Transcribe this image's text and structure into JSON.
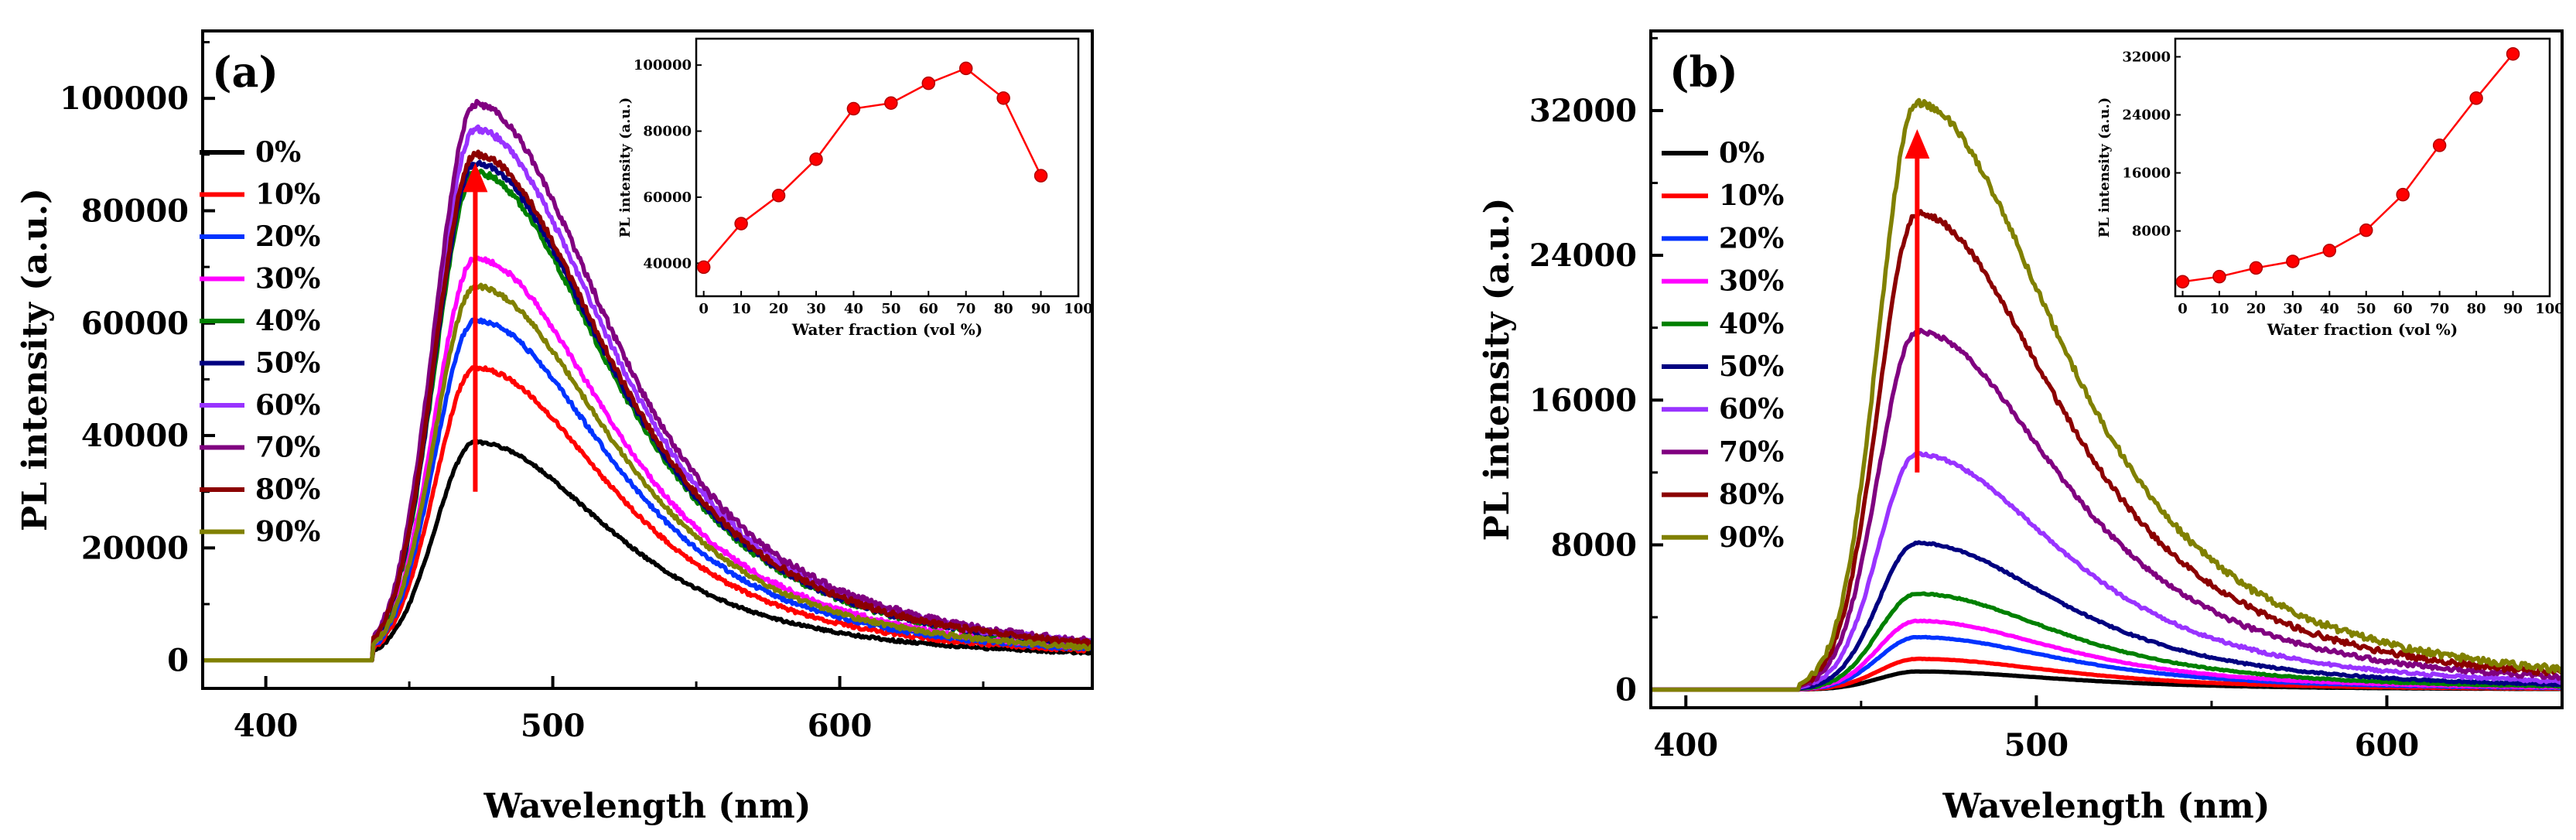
{
  "figure": {
    "panels": [
      "(a)",
      "(b)"
    ]
  },
  "chart_data": [
    {
      "type": "line",
      "panel": "(a)",
      "xlabel": "Wavelength (nm)",
      "ylabel": "PL intensity (a.u.)",
      "xlim": [
        378,
        688
      ],
      "ylim": [
        -5000,
        112000
      ],
      "xticks": [
        400,
        500,
        600
      ],
      "yticks": [
        0,
        20000,
        40000,
        60000,
        80000,
        100000
      ],
      "peak_center": 473,
      "rise_width": 14,
      "tail_width": 52,
      "onset": 437,
      "series": [
        {
          "name": "0%",
          "color": "#000000",
          "peak": 38800
        },
        {
          "name": "10%",
          "color": "#ff0000",
          "peak": 52000
        },
        {
          "name": "20%",
          "color": "#0033ff",
          "peak": 60500
        },
        {
          "name": "30%",
          "color": "#ff00ff",
          "peak": 71500
        },
        {
          "name": "40%",
          "color": "#008000",
          "peak": 86800
        },
        {
          "name": "50%",
          "color": "#000080",
          "peak": 88500
        },
        {
          "name": "60%",
          "color": "#9933ff",
          "peak": 94500
        },
        {
          "name": "70%",
          "color": "#800080",
          "peak": 99000
        },
        {
          "name": "80%",
          "color": "#8b0000",
          "peak": 90000
        },
        {
          "name": "90%",
          "color": "#808000",
          "peak": 66500
        }
      ],
      "arrow": {
        "x": 473,
        "from": 30000,
        "to": 88000,
        "color": "#ff0000"
      },
      "inset": {
        "xlabel": "Water fraction (vol %)",
        "ylabel": "PL intensity (a.u.)",
        "xlim": [
          -2,
          100
        ],
        "ylim": [
          30000,
          108000
        ],
        "xticks": [
          0,
          10,
          20,
          30,
          40,
          50,
          60,
          70,
          80,
          90,
          100
        ],
        "yticks": [
          40000,
          60000,
          80000,
          100000
        ],
        "x": [
          0,
          10,
          20,
          30,
          40,
          50,
          60,
          70,
          80,
          90
        ],
        "y": [
          38800,
          52000,
          60500,
          71500,
          86800,
          88500,
          94500,
          99000,
          90000,
          66500
        ]
      }
    },
    {
      "type": "line",
      "panel": "(b)",
      "xlabel": "Wavelength (nm)",
      "ylabel": "PL intensity (a.u.)",
      "xlim": [
        390,
        650
      ],
      "ylim": [
        -1000,
        36400
      ],
      "xticks": [
        400,
        500,
        600
      ],
      "yticks": [
        0,
        8000,
        16000,
        24000,
        32000
      ],
      "peak_center": 466,
      "rise_width": 11,
      "tail_width": 45,
      "onset": 432,
      "series": [
        {
          "name": "0%",
          "color": "#000000",
          "peak": 1000
        },
        {
          "name": "10%",
          "color": "#ff0000",
          "peak": 1700
        },
        {
          "name": "20%",
          "color": "#0033ff",
          "peak": 2900
        },
        {
          "name": "30%",
          "color": "#ff00ff",
          "peak": 3800
        },
        {
          "name": "40%",
          "color": "#008000",
          "peak": 5300
        },
        {
          "name": "50%",
          "color": "#000080",
          "peak": 8100
        },
        {
          "name": "60%",
          "color": "#9933ff",
          "peak": 13000
        },
        {
          "name": "70%",
          "color": "#800080",
          "peak": 19800
        },
        {
          "name": "80%",
          "color": "#8b0000",
          "peak": 26300
        },
        {
          "name": "90%",
          "color": "#808000",
          "peak": 32400
        }
      ],
      "arrow": {
        "x": 466,
        "from": 12000,
        "to": 30800,
        "color": "#ff0000"
      },
      "inset": {
        "xlabel": "Water fraction (vol %)",
        "ylabel": "PL intensity (a.u.)",
        "xlim": [
          -2,
          100
        ],
        "ylim": [
          -1000,
          34500
        ],
        "xticks": [
          0,
          10,
          20,
          30,
          40,
          50,
          60,
          70,
          80,
          90,
          100
        ],
        "yticks": [
          8000,
          16000,
          24000,
          32000
        ],
        "x": [
          0,
          10,
          20,
          30,
          40,
          50,
          60,
          70,
          80,
          90
        ],
        "y": [
          1000,
          1700,
          2900,
          3800,
          5300,
          8100,
          13000,
          19800,
          26300,
          32400
        ]
      }
    }
  ]
}
